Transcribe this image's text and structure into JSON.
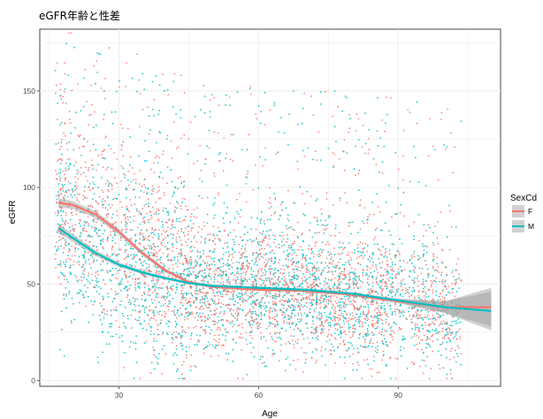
{
  "chart_data": {
    "type": "scatter",
    "title": "eGFR年齢と性差",
    "xlabel": "Age",
    "ylabel": "eGFR",
    "xlim": [
      13,
      112
    ],
    "ylim": [
      -3,
      182
    ],
    "xticks": [
      30,
      60,
      90
    ],
    "yticks": [
      0,
      50,
      100,
      150
    ],
    "grid": true,
    "legend": {
      "title": "SexCd",
      "placement": "right",
      "entries": [
        "F",
        "M"
      ]
    },
    "colors": {
      "F": "#F8766D",
      "M": "#00BFC4",
      "band": "#999999"
    },
    "series": [
      {
        "name": "F",
        "type": "smooth",
        "x": [
          17,
          20,
          25,
          30,
          35,
          40,
          45,
          50,
          60,
          70,
          80,
          90,
          100,
          110
        ],
        "y": [
          92,
          91,
          86,
          77,
          66,
          57,
          51,
          48.5,
          47,
          46.5,
          44.5,
          41,
          38,
          38
        ],
        "band_halfwidth": [
          2.5,
          2,
          1.8,
          1.5,
          1.2,
          1,
          0.8,
          0.7,
          0.7,
          0.7,
          0.8,
          1,
          3,
          10
        ]
      },
      {
        "name": "M",
        "type": "smooth",
        "x": [
          17,
          20,
          25,
          30,
          35,
          40,
          45,
          50,
          60,
          70,
          80,
          90,
          100,
          110
        ],
        "y": [
          79,
          74,
          66,
          60,
          56,
          53,
          50.5,
          49,
          48,
          47,
          45,
          41.5,
          38,
          36
        ],
        "band_halfwidth": [
          2.5,
          2,
          1.5,
          1.2,
          1,
          0.8,
          0.7,
          0.7,
          0.7,
          0.7,
          0.8,
          1,
          3,
          10
        ]
      }
    ],
    "points": {
      "age_range": [
        17,
        104
      ],
      "egfr_range": [
        0,
        182
      ],
      "count_per_sex": 2600
    }
  }
}
